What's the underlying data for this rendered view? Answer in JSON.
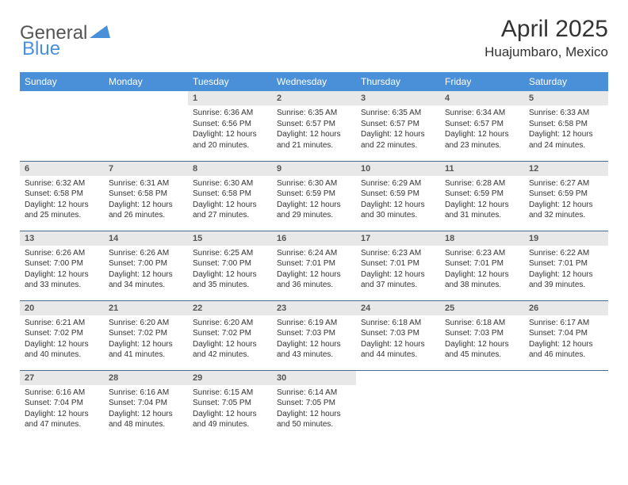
{
  "logo": {
    "text1": "General",
    "text2": "Blue"
  },
  "colors": {
    "headerBlue": "#4a90d9",
    "logoBlue": "#4a90d9",
    "text": "#333333",
    "dayBg": "#e8e8e8",
    "borderLine": "#4a6a8a"
  },
  "title": {
    "monthYear": "April 2025",
    "location": "Huajumbaro, Mexico"
  },
  "dayHeaders": [
    "Sunday",
    "Monday",
    "Tuesday",
    "Wednesday",
    "Thursday",
    "Friday",
    "Saturday"
  ],
  "startOffset": 2,
  "daysInMonth": 30,
  "days": [
    {
      "n": 1,
      "sr": "6:36 AM",
      "ss": "6:56 PM",
      "dl": "12 hours and 20 minutes."
    },
    {
      "n": 2,
      "sr": "6:35 AM",
      "ss": "6:57 PM",
      "dl": "12 hours and 21 minutes."
    },
    {
      "n": 3,
      "sr": "6:35 AM",
      "ss": "6:57 PM",
      "dl": "12 hours and 22 minutes."
    },
    {
      "n": 4,
      "sr": "6:34 AM",
      "ss": "6:57 PM",
      "dl": "12 hours and 23 minutes."
    },
    {
      "n": 5,
      "sr": "6:33 AM",
      "ss": "6:58 PM",
      "dl": "12 hours and 24 minutes."
    },
    {
      "n": 6,
      "sr": "6:32 AM",
      "ss": "6:58 PM",
      "dl": "12 hours and 25 minutes."
    },
    {
      "n": 7,
      "sr": "6:31 AM",
      "ss": "6:58 PM",
      "dl": "12 hours and 26 minutes."
    },
    {
      "n": 8,
      "sr": "6:30 AM",
      "ss": "6:58 PM",
      "dl": "12 hours and 27 minutes."
    },
    {
      "n": 9,
      "sr": "6:30 AM",
      "ss": "6:59 PM",
      "dl": "12 hours and 29 minutes."
    },
    {
      "n": 10,
      "sr": "6:29 AM",
      "ss": "6:59 PM",
      "dl": "12 hours and 30 minutes."
    },
    {
      "n": 11,
      "sr": "6:28 AM",
      "ss": "6:59 PM",
      "dl": "12 hours and 31 minutes."
    },
    {
      "n": 12,
      "sr": "6:27 AM",
      "ss": "6:59 PM",
      "dl": "12 hours and 32 minutes."
    },
    {
      "n": 13,
      "sr": "6:26 AM",
      "ss": "7:00 PM",
      "dl": "12 hours and 33 minutes."
    },
    {
      "n": 14,
      "sr": "6:26 AM",
      "ss": "7:00 PM",
      "dl": "12 hours and 34 minutes."
    },
    {
      "n": 15,
      "sr": "6:25 AM",
      "ss": "7:00 PM",
      "dl": "12 hours and 35 minutes."
    },
    {
      "n": 16,
      "sr": "6:24 AM",
      "ss": "7:01 PM",
      "dl": "12 hours and 36 minutes."
    },
    {
      "n": 17,
      "sr": "6:23 AM",
      "ss": "7:01 PM",
      "dl": "12 hours and 37 minutes."
    },
    {
      "n": 18,
      "sr": "6:23 AM",
      "ss": "7:01 PM",
      "dl": "12 hours and 38 minutes."
    },
    {
      "n": 19,
      "sr": "6:22 AM",
      "ss": "7:01 PM",
      "dl": "12 hours and 39 minutes."
    },
    {
      "n": 20,
      "sr": "6:21 AM",
      "ss": "7:02 PM",
      "dl": "12 hours and 40 minutes."
    },
    {
      "n": 21,
      "sr": "6:20 AM",
      "ss": "7:02 PM",
      "dl": "12 hours and 41 minutes."
    },
    {
      "n": 22,
      "sr": "6:20 AM",
      "ss": "7:02 PM",
      "dl": "12 hours and 42 minutes."
    },
    {
      "n": 23,
      "sr": "6:19 AM",
      "ss": "7:03 PM",
      "dl": "12 hours and 43 minutes."
    },
    {
      "n": 24,
      "sr": "6:18 AM",
      "ss": "7:03 PM",
      "dl": "12 hours and 44 minutes."
    },
    {
      "n": 25,
      "sr": "6:18 AM",
      "ss": "7:03 PM",
      "dl": "12 hours and 45 minutes."
    },
    {
      "n": 26,
      "sr": "6:17 AM",
      "ss": "7:04 PM",
      "dl": "12 hours and 46 minutes."
    },
    {
      "n": 27,
      "sr": "6:16 AM",
      "ss": "7:04 PM",
      "dl": "12 hours and 47 minutes."
    },
    {
      "n": 28,
      "sr": "6:16 AM",
      "ss": "7:04 PM",
      "dl": "12 hours and 48 minutes."
    },
    {
      "n": 29,
      "sr": "6:15 AM",
      "ss": "7:05 PM",
      "dl": "12 hours and 49 minutes."
    },
    {
      "n": 30,
      "sr": "6:14 AM",
      "ss": "7:05 PM",
      "dl": "12 hours and 50 minutes."
    }
  ],
  "labels": {
    "sunrise": "Sunrise: ",
    "sunset": "Sunset: ",
    "daylight": "Daylight: "
  }
}
